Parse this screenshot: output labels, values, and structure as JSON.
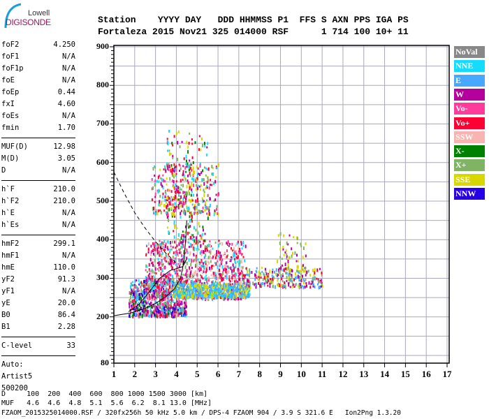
{
  "logo": {
    "line1": "Lowell",
    "line2": "DIGISONDE"
  },
  "header": {
    "labels": "Station    YYYY DAY   DDD HHMMSS P1  FFS S AXN PPS IGA PS",
    "values": "Fortaleza 2015 Nov21 325 014000 RSF      1 714 100 10+ 11"
  },
  "params": {
    "group1": [
      [
        "foF2",
        "4.250"
      ],
      [
        "foF1",
        "N/A"
      ],
      [
        "foF1p",
        "N/A"
      ],
      [
        "foE",
        "N/A"
      ],
      [
        "foEp",
        "0.44"
      ],
      [
        "fxI",
        "4.60"
      ],
      [
        "foEs",
        "N/A"
      ],
      [
        "fmin",
        "1.70"
      ]
    ],
    "group2": [
      [
        "MUF(D)",
        "12.98"
      ],
      [
        "M(D)",
        "3.05"
      ],
      [
        "D",
        "N/A"
      ]
    ],
    "group3": [
      [
        "h`F",
        "210.0"
      ],
      [
        "h`F2",
        "210.0"
      ],
      [
        "h`E",
        "N/A"
      ],
      [
        "h`Es",
        "N/A"
      ]
    ],
    "group4": [
      [
        "hmF2",
        "299.1"
      ],
      [
        "hmF1",
        "N/A"
      ],
      [
        "hmE",
        "110.0"
      ],
      [
        "yF2",
        "91.3"
      ],
      [
        "yF1",
        "N/A"
      ],
      [
        "yE",
        "20.0"
      ],
      [
        "B0",
        "86.4"
      ],
      [
        "B1",
        "2.28"
      ]
    ],
    "group5": [
      [
        "C-level",
        "33"
      ]
    ],
    "auto": [
      "Auto:",
      "Artist5",
      "500200"
    ]
  },
  "footer": {
    "d_row": "D     100  200  400  600  800 1000 1500 3000 [km]",
    "muf_row": "MUF   4.6  4.6  4.8  5.1  5.6  6.2  8.1 13.0 [MHz]",
    "info": "FZAOM_2015325014000.RSF / 320fx256h 50 kHz 5.0 km / DPS-4 FZAOM 904 / 3.9 S 321.6 E   Ion2Png 1.3.20"
  },
  "chart_data": {
    "type": "scatter",
    "xlabel": "Frequency [MHz]",
    "ylabel": "Virtual height [km]",
    "xlim": [
      1,
      17
    ],
    "ylim": [
      80,
      900
    ],
    "x_ticks": [
      "1",
      "2",
      "3",
      "4",
      "5",
      "6",
      "7",
      "8",
      "9",
      "10",
      "11",
      "12",
      "13",
      "14",
      "15",
      "16",
      "17"
    ],
    "y_ticks": [
      {
        "v": 900,
        "t": "900"
      },
      {
        "v": 800,
        "t": "800"
      },
      {
        "v": 700,
        "t": "700"
      },
      {
        "v": 600,
        "t": "600"
      },
      {
        "v": 500,
        "t": "500"
      },
      {
        "v": 400,
        "t": "400"
      },
      {
        "v": 300,
        "t": "300"
      },
      {
        "v": 200,
        "t": "200"
      },
      {
        "v": 80,
        "t": "80"
      }
    ],
    "grid": true,
    "legend": [
      {
        "name": "NoVal",
        "color": "#888888"
      },
      {
        "name": "NNE",
        "color": "#14dcff"
      },
      {
        "name": "E",
        "color": "#46a8ff"
      },
      {
        "name": "W",
        "color": "#b4009c"
      },
      {
        "name": "Vo-",
        "color": "#ff3c9c"
      },
      {
        "name": "Vo+",
        "color": "#ff0032"
      },
      {
        "name": "SSW",
        "color": "#f8b4b0"
      },
      {
        "name": "X-",
        "color": "#008000"
      },
      {
        "name": "X+",
        "color": "#80b464"
      },
      {
        "name": "SSE",
        "color": "#d8d800"
      },
      {
        "name": "NNW",
        "color": "#2800e6"
      }
    ],
    "legend_placement": "right",
    "echo_clusters": [
      {
        "f": [
          1.7,
          4.5
        ],
        "h": [
          205,
          300
        ],
        "n": 700,
        "colors": [
          "W",
          "Vo+",
          "Vo-",
          "NNE",
          "E",
          "X-",
          "X+",
          "NNW"
        ]
      },
      {
        "f": [
          2.5,
          7.3
        ],
        "h": [
          250,
          400
        ],
        "n": 1100,
        "colors": [
          "W",
          "Vo+",
          "Vo-",
          "SSW",
          "NNE",
          "X+"
        ]
      },
      {
        "f": [
          3.8,
          7.5
        ],
        "h": [
          255,
          290
        ],
        "n": 500,
        "colors": [
          "E",
          "SSE",
          "E",
          "SSE",
          "NNE"
        ]
      },
      {
        "f": [
          3.5,
          5.5
        ],
        "h": [
          400,
          690
        ],
        "n": 220,
        "colors": [
          "W",
          "Vo+",
          "NNE",
          "X-",
          "SSE",
          "X+"
        ]
      },
      {
        "f": [
          2.8,
          6.0
        ],
        "h": [
          470,
          600
        ],
        "n": 300,
        "colors": [
          "SSE",
          "W",
          "Vo+",
          "X+",
          "NNE",
          "Vo-"
        ]
      },
      {
        "f": [
          7.3,
          11
        ],
        "h": [
          280,
          330
        ],
        "n": 260,
        "colors": [
          "E",
          "SSE",
          "Vo+",
          "W",
          "X+"
        ]
      },
      {
        "f": [
          8.8,
          10.2
        ],
        "h": [
          320,
          420
        ],
        "n": 60,
        "colors": [
          "W",
          "X+",
          "SSE"
        ]
      }
    ],
    "fitted_profile": [
      [
        1,
        203
      ],
      [
        1.8,
        210
      ],
      [
        2.5,
        222
      ],
      [
        3,
        235
      ],
      [
        3.5,
        252
      ],
      [
        3.9,
        272
      ],
      [
        4.2,
        300
      ],
      [
        4.35,
        340
      ],
      [
        4.45,
        400
      ],
      [
        4.5,
        450
      ]
    ],
    "dashed_curve": [
      [
        1,
        575
      ],
      [
        1.5,
        520
      ],
      [
        2,
        470
      ],
      [
        2.5,
        430
      ],
      [
        3,
        395
      ],
      [
        3.5,
        365
      ],
      [
        4,
        340
      ]
    ],
    "trace": [
      [
        1.7,
        213
      ],
      [
        2.2,
        232
      ],
      [
        2.7,
        265
      ],
      [
        3.2,
        300
      ],
      [
        3.7,
        320
      ],
      [
        4.0,
        325
      ],
      [
        4.3,
        330
      ],
      [
        4.5,
        350
      ]
    ]
  }
}
